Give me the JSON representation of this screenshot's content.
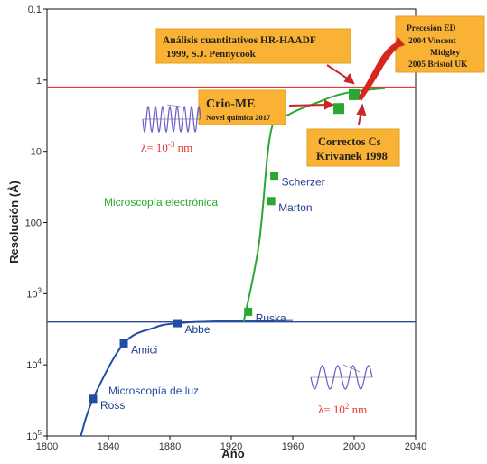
{
  "chart_data": {
    "type": "line",
    "xlabel": "Año",
    "ylabel": "Resolución (Å)",
    "xlim": [
      1800,
      2040
    ],
    "ylim_log10": [
      -1,
      5
    ],
    "y_axis_inverted": true,
    "y_scale": "log",
    "x_ticks": [
      "1800",
      "1840",
      "1880",
      "1920",
      "1960",
      "2000",
      "2040"
    ],
    "y_ticks": [
      {
        "base": "0.1",
        "sup": ""
      },
      {
        "base": "1",
        "sup": ""
      },
      {
        "base": "10",
        "sup": ""
      },
      {
        "base": "100",
        "sup": ""
      },
      {
        "base": "10",
        "sup": "3"
      },
      {
        "base": "10",
        "sup": "4"
      },
      {
        "base": "10",
        "sup": "5"
      }
    ],
    "reference_lines": [
      {
        "y": 1.25,
        "color": "#e53935"
      },
      {
        "y": 2500,
        "color": "#2b4a9a"
      }
    ],
    "series": [
      {
        "name": "Microscopía de luz",
        "color": "#1f4ea3",
        "curve": [
          [
            1822,
            100000
          ],
          [
            1830,
            30000
          ],
          [
            1850,
            5000
          ],
          [
            1870,
            3000
          ],
          [
            1885,
            2600
          ],
          [
            1910,
            2450
          ],
          [
            1960,
            2350
          ]
        ],
        "points": [
          {
            "x": 1830,
            "y": 30000,
            "label": "Ross"
          },
          {
            "x": 1850,
            "y": 5000,
            "label": "Amici"
          },
          {
            "x": 1885,
            "y": 2600,
            "label": "Abbe"
          }
        ]
      },
      {
        "name": "Microscopía electrónica",
        "color": "#2aa832",
        "curve": [
          [
            1928,
            2500
          ],
          [
            1938,
            200
          ],
          [
            1946,
            5
          ],
          [
            1958,
            3
          ],
          [
            1975,
            2.1
          ],
          [
            1990,
            1.6
          ],
          [
            2005,
            1.4
          ],
          [
            2020,
            1.3
          ]
        ],
        "points": [
          {
            "x": 1931,
            "y": 1800,
            "label": "Ruska"
          },
          {
            "x": 1946,
            "y": 50,
            "label": "Marton"
          },
          {
            "x": 1948,
            "y": 22,
            "label": "Scherzer"
          },
          {
            "x": 1990,
            "y": 2.5,
            "label": ""
          },
          {
            "x": 2000,
            "y": 1.6,
            "label": ""
          }
        ]
      }
    ],
    "annotations": {
      "haadf": {
        "line1": "Análisis cuantitativos HR-HAADF",
        "line2": "1999, S.J. Pennycook"
      },
      "precesion": {
        "line1": "Precesión ED",
        "line2": "2004  Vincent",
        "line3": "Midgley",
        "line4": "2005  Bristol UK"
      },
      "crio": {
        "title": "Crio-ME",
        "subtitle": "Novel química  2017"
      },
      "cs": {
        "line1": "Correctos Cs",
        "line2": "Krivanek 1998"
      },
      "lambda_em": {
        "base": "λ= 10",
        "sup": "-3",
        "unit": " nm"
      },
      "lambda_light": {
        "base": "λ= 10",
        "sup": "2",
        "unit": " nm"
      }
    },
    "colors": {
      "light": "#1f4ea3",
      "electron": "#2aa832",
      "arrow": "#c62828",
      "box": "#f9b233",
      "wave": "#6a5acd"
    }
  }
}
